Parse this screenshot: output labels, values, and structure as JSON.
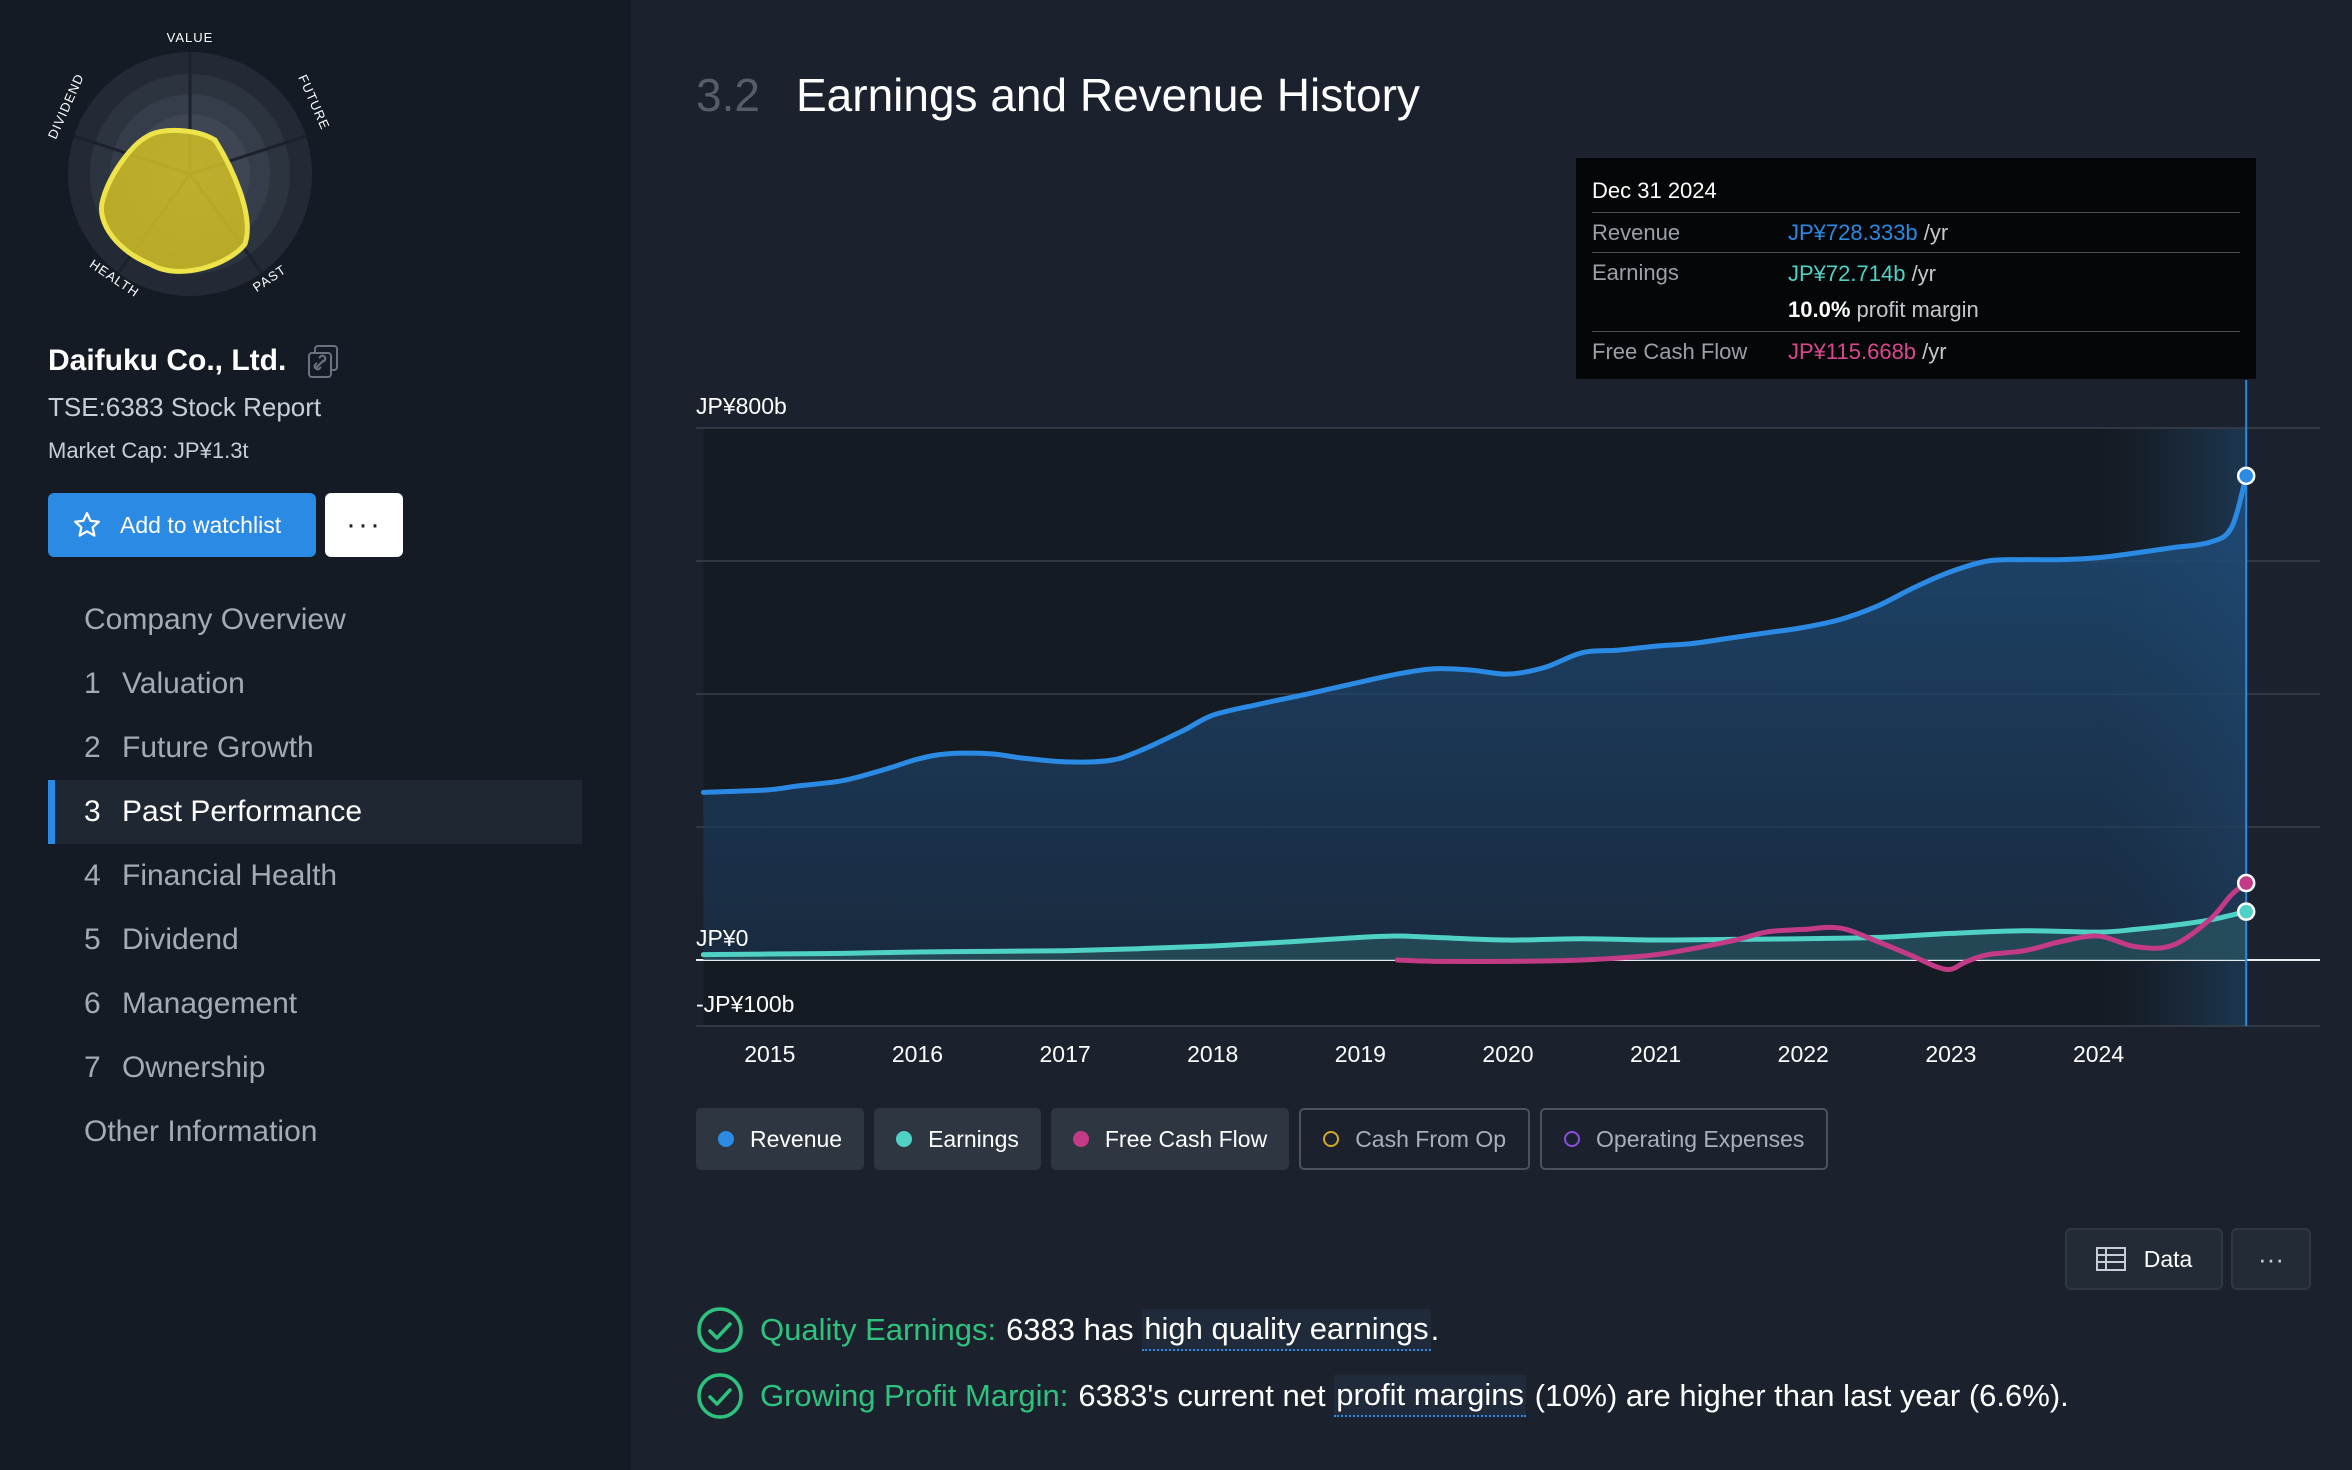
{
  "snowflake": {
    "labels": {
      "value": "VALUE",
      "future": "FUTURE",
      "past": "PAST",
      "health": "HEALTH",
      "dividend": "DIVIDEND"
    },
    "fill_color": "#c9b825"
  },
  "company": {
    "name": "Daifuku Co., Ltd.",
    "stock_report": "TSE:6383 Stock Report",
    "market_cap": "Market Cap: JP¥1.3t"
  },
  "actions": {
    "watchlist_label": "Add to watchlist",
    "more_label": "···"
  },
  "nav": {
    "items": [
      {
        "num": "",
        "label": "Company Overview"
      },
      {
        "num": "1",
        "label": "Valuation"
      },
      {
        "num": "2",
        "label": "Future Growth"
      },
      {
        "num": "3",
        "label": "Past Performance"
      },
      {
        "num": "4",
        "label": "Financial Health"
      },
      {
        "num": "5",
        "label": "Dividend"
      },
      {
        "num": "6",
        "label": "Management"
      },
      {
        "num": "7",
        "label": "Ownership"
      },
      {
        "num": "",
        "label": "Other Information"
      }
    ],
    "active_index": 3
  },
  "section": {
    "number": "3.2",
    "title": "Earnings and Revenue History"
  },
  "tooltip": {
    "date": "Dec 31 2024",
    "revenue_label": "Revenue",
    "revenue_value": "JP¥728.333b",
    "revenue_unit": "/yr",
    "earnings_label": "Earnings",
    "earnings_value": "JP¥72.714b",
    "earnings_unit": "/yr",
    "margin_value": "10.0%",
    "margin_label": "profit margin",
    "fcf_label": "Free Cash Flow",
    "fcf_value": "JP¥115.668b",
    "fcf_unit": "/yr"
  },
  "chart_data": {
    "type": "area",
    "y_labels": [
      "JP¥800b",
      "JP¥0",
      "-JP¥100b"
    ],
    "ylim": [
      -100,
      800
    ],
    "x_ticks": [
      "2015",
      "2016",
      "2017",
      "2018",
      "2019",
      "2020",
      "2021",
      "2022",
      "2023",
      "2024"
    ],
    "xlim": [
      2014.5,
      2025.5
    ],
    "highlight_from": 2024.0,
    "series": [
      {
        "name": "Revenue",
        "color": "#2b8ae3",
        "x": [
          2014.55,
          2014.8,
          2015.0,
          2015.2,
          2015.5,
          2015.8,
          2016.0,
          2016.2,
          2016.5,
          2016.7,
          2017.0,
          2017.3,
          2017.5,
          2017.8,
          2018.0,
          2018.3,
          2018.6,
          2018.8,
          2019.0,
          2019.25,
          2019.5,
          2019.75,
          2020.0,
          2020.25,
          2020.5,
          2020.75,
          2021.0,
          2021.25,
          2021.5,
          2021.75,
          2022.0,
          2022.25,
          2022.5,
          2022.75,
          2023.0,
          2023.25,
          2023.5,
          2023.75,
          2024.0,
          2024.25,
          2024.5,
          2024.75,
          2024.9,
          2025.0
        ],
        "values": [
          252,
          254,
          256,
          262,
          270,
          288,
          302,
          310,
          310,
          304,
          298,
          300,
          314,
          345,
          368,
          384,
          398,
          408,
          418,
          430,
          438,
          436,
          430,
          440,
          462,
          466,
          472,
          476,
          484,
          492,
          500,
          512,
          532,
          560,
          584,
          600,
          602,
          602,
          605,
          612,
          620,
          628,
          650,
          728
        ]
      },
      {
        "name": "Earnings",
        "color": "#4fd1c5",
        "x": [
          2014.55,
          2015.0,
          2015.5,
          2016.0,
          2016.5,
          2017.0,
          2017.5,
          2018.0,
          2018.5,
          2019.0,
          2019.25,
          2019.5,
          2020.0,
          2020.5,
          2021.0,
          2021.5,
          2022.0,
          2022.5,
          2023.0,
          2023.5,
          2024.0,
          2024.25,
          2024.5,
          2024.75,
          2025.0
        ],
        "values": [
          8,
          9,
          10,
          12,
          13,
          14,
          17,
          21,
          27,
          34,
          36,
          34,
          30,
          32,
          30,
          31,
          32,
          34,
          40,
          44,
          42,
          46,
          52,
          60,
          72.7
        ]
      },
      {
        "name": "Free Cash Flow",
        "color": "#c33b86",
        "x": [
          2019.25,
          2019.5,
          2020.0,
          2020.5,
          2021.0,
          2021.5,
          2021.75,
          2022.0,
          2022.25,
          2022.5,
          2022.75,
          2022.9,
          2023.0,
          2023.1,
          2023.25,
          2023.5,
          2023.75,
          2024.0,
          2024.25,
          2024.5,
          2024.75,
          2024.9,
          2025.0
        ],
        "values": [
          0,
          -2,
          -2,
          0,
          8,
          28,
          42,
          46,
          48,
          28,
          5,
          -10,
          -14,
          -3,
          8,
          14,
          28,
          36,
          20,
          22,
          60,
          98,
          115.7
        ]
      }
    ],
    "legend": [
      {
        "label": "Revenue",
        "color": "#2b8ae3",
        "active": true
      },
      {
        "label": "Earnings",
        "color": "#4fd1c5",
        "active": true
      },
      {
        "label": "Free Cash Flow",
        "color": "#c33b86",
        "active": true
      },
      {
        "label": "Cash From Op",
        "color": "#d4a72c",
        "active": false
      },
      {
        "label": "Operating Expenses",
        "color": "#8a4ee0",
        "active": false
      }
    ]
  },
  "table_actions": {
    "data_label": "Data",
    "more_label": "···"
  },
  "checks": [
    {
      "title": "Quality Earnings:",
      "prefix": "6383 has",
      "link": "high quality earnings",
      "suffix": "."
    },
    {
      "title": "Growing Profit Margin:",
      "prefix": "6383's current net",
      "link": "profit margins",
      "suffix": "(10%) are higher than last year (6.6%)."
    }
  ]
}
